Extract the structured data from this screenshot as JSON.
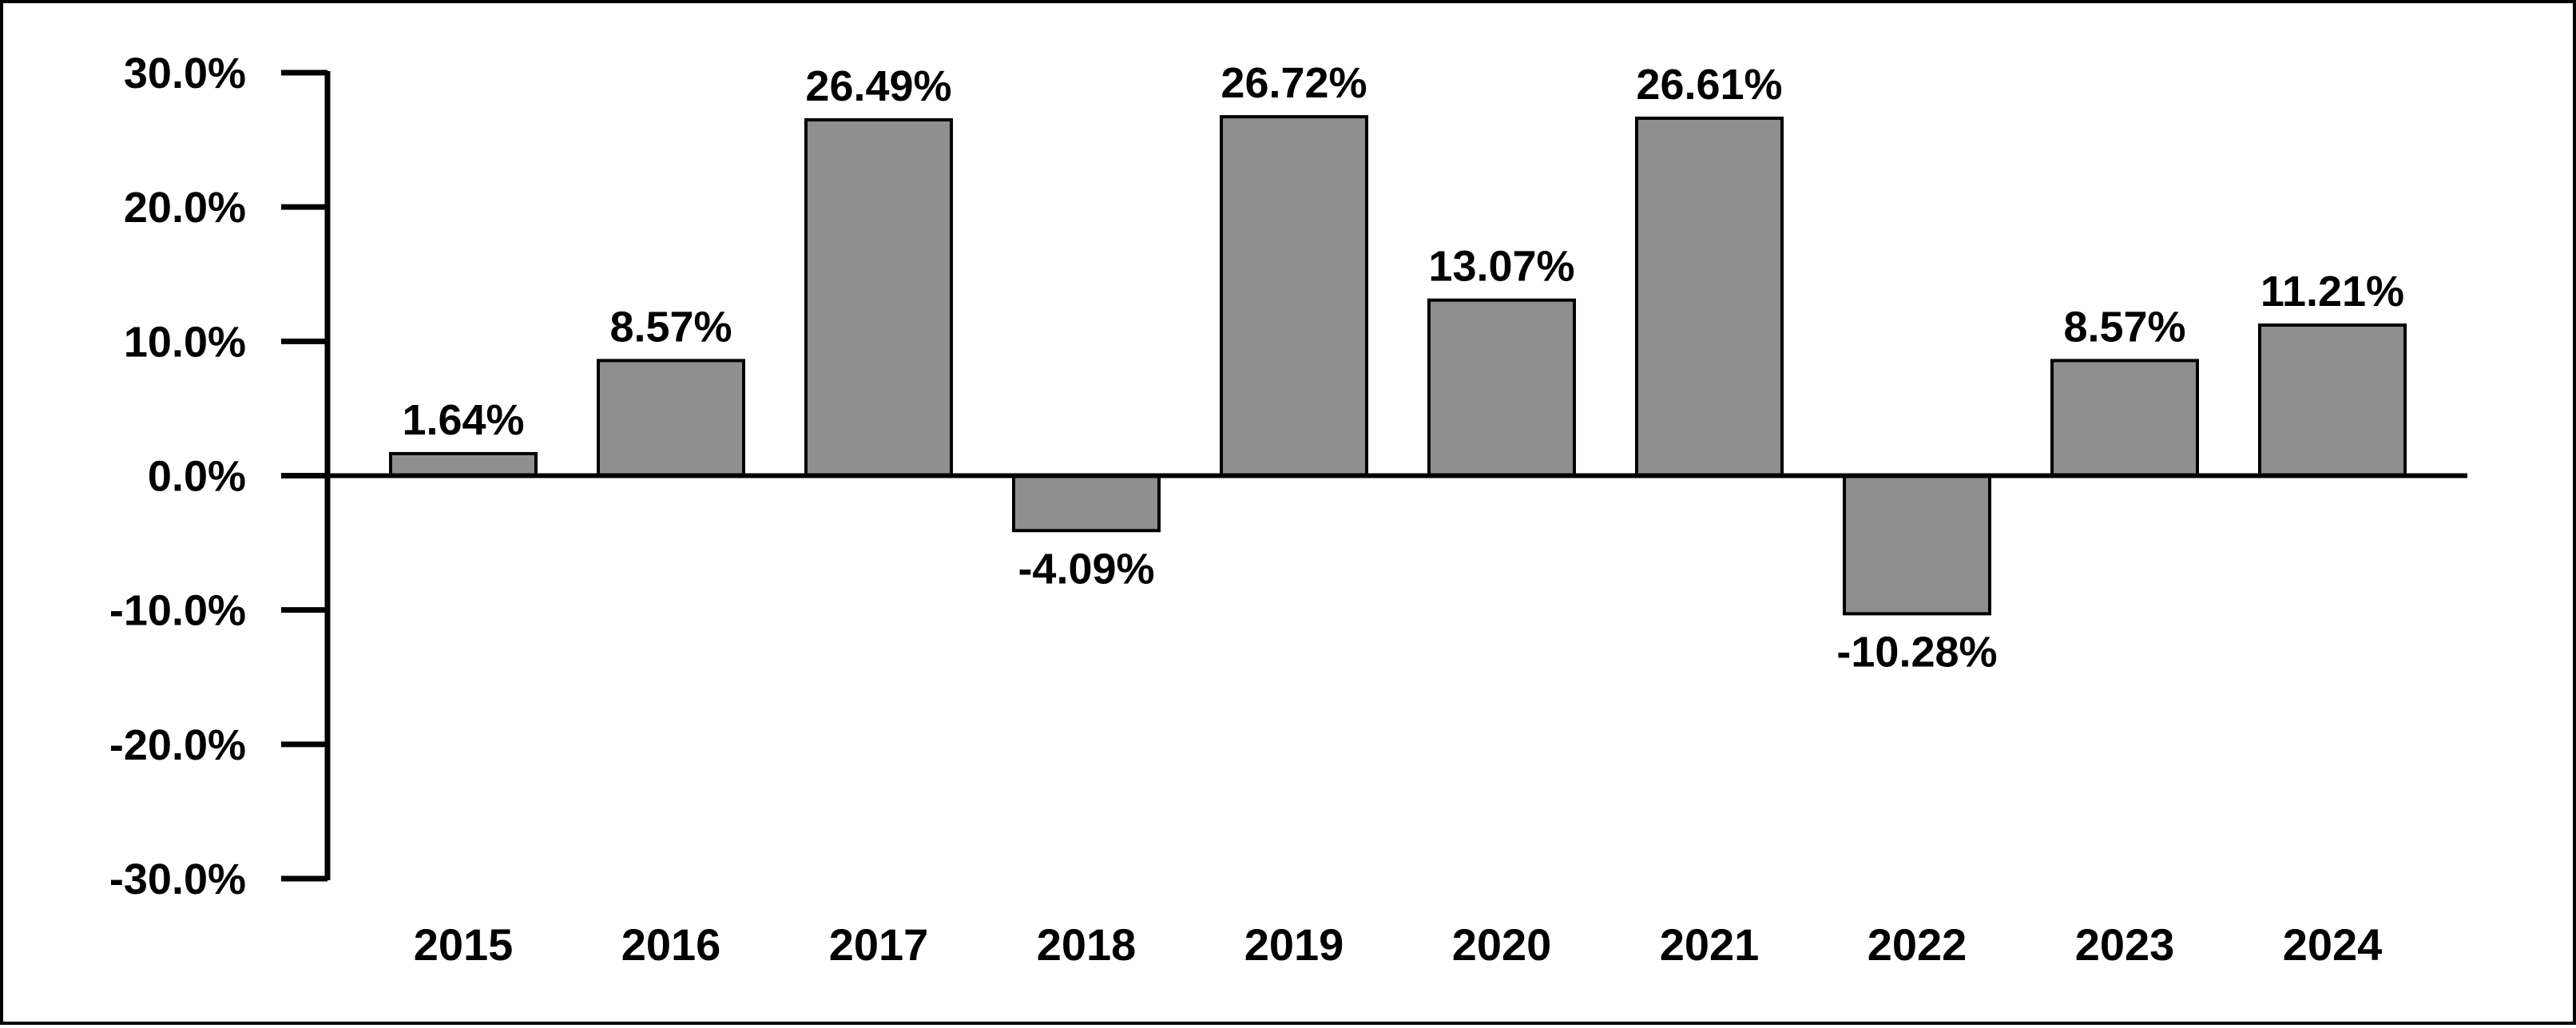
{
  "chart_data": {
    "type": "bar",
    "categories": [
      "2015",
      "2016",
      "2017",
      "2018",
      "2019",
      "2020",
      "2021",
      "2022",
      "2023",
      "2024"
    ],
    "values": [
      1.64,
      8.57,
      26.49,
      -4.09,
      26.72,
      13.07,
      26.61,
      -10.28,
      8.57,
      11.21
    ],
    "data_labels": [
      "1.64%",
      "8.57%",
      "26.49%",
      "-4.09%",
      "26.72%",
      "13.07%",
      "26.61%",
      "-10.28%",
      "8.57%",
      "11.21%"
    ],
    "ylim": [
      -30,
      30
    ],
    "yticks": [
      30,
      20,
      10,
      0,
      -10,
      -20,
      -30
    ],
    "ytick_labels": [
      "30.0%",
      "20.0%",
      "10.0%",
      "0.0%",
      "-10.0%",
      "-20.0%",
      "-30.0%"
    ],
    "title": "",
    "xlabel": "",
    "ylabel": "",
    "grid": false,
    "legend": "none",
    "bar_color": "#8f8f8f",
    "bar_edge_color": "#000000",
    "axis_color": "#000000"
  }
}
